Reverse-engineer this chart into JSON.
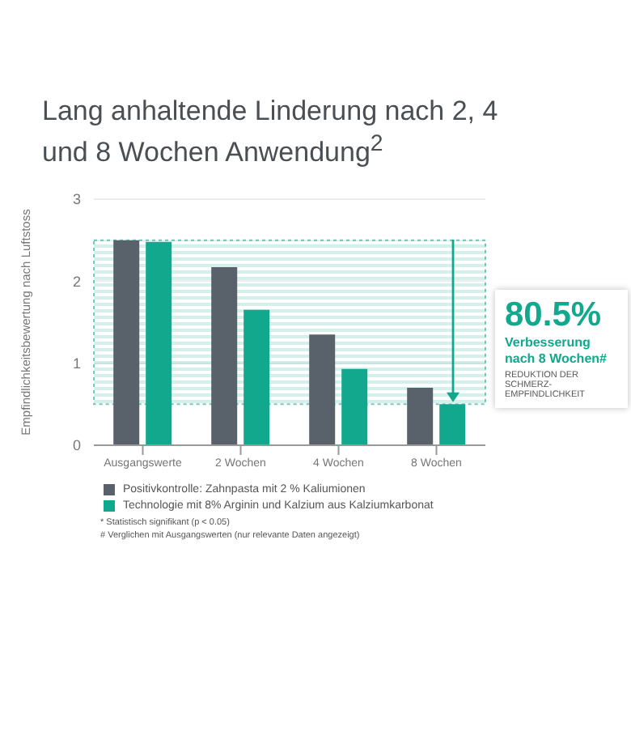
{
  "chart_data": {
    "type": "bar",
    "title": "Lang anhaltende Linderung nach 2, 4 und 8 Wochen Anwendung$^{2}$",
    "ylabel": "Empfindlichkeitsbewertung nach Luftstoss",
    "categories": [
      "Ausgangswerte",
      "2 Wochen",
      "4 Wochen",
      "8 Wochen"
    ],
    "series": [
      {
        "name": "Positivkontrolle: Zahnpasta mit 2 % Kaliumionen",
        "color": "#59616a",
        "values": [
          2.5,
          2.17,
          1.35,
          0.7
        ]
      },
      {
        "name": "Technologie mit 8% Arginin und Kalzium aus Kalziumkarbonat",
        "color": "#12a88d",
        "values": [
          2.48,
          1.65,
          0.93,
          0.5
        ]
      }
    ],
    "ylim": [
      0,
      3
    ],
    "yticks": [
      0,
      1,
      2,
      3
    ],
    "grid": "y",
    "legend": "bottom",
    "bands": [
      {
        "axis": "y",
        "from": 0.5,
        "to": 2.5,
        "color": "#12a88d"
      }
    ],
    "annotations": [
      "80.5%",
      "Verbesserung nach 8 Wochen#",
      "REDUKTION DER SCHMERZ-EMPFINDLICHKEIT",
      "* Statistisch signifikant (p < 0.05)",
      "# Verglichen mit Ausgangswerten (nur relevante Daten angezeigt)"
    ]
  }
}
